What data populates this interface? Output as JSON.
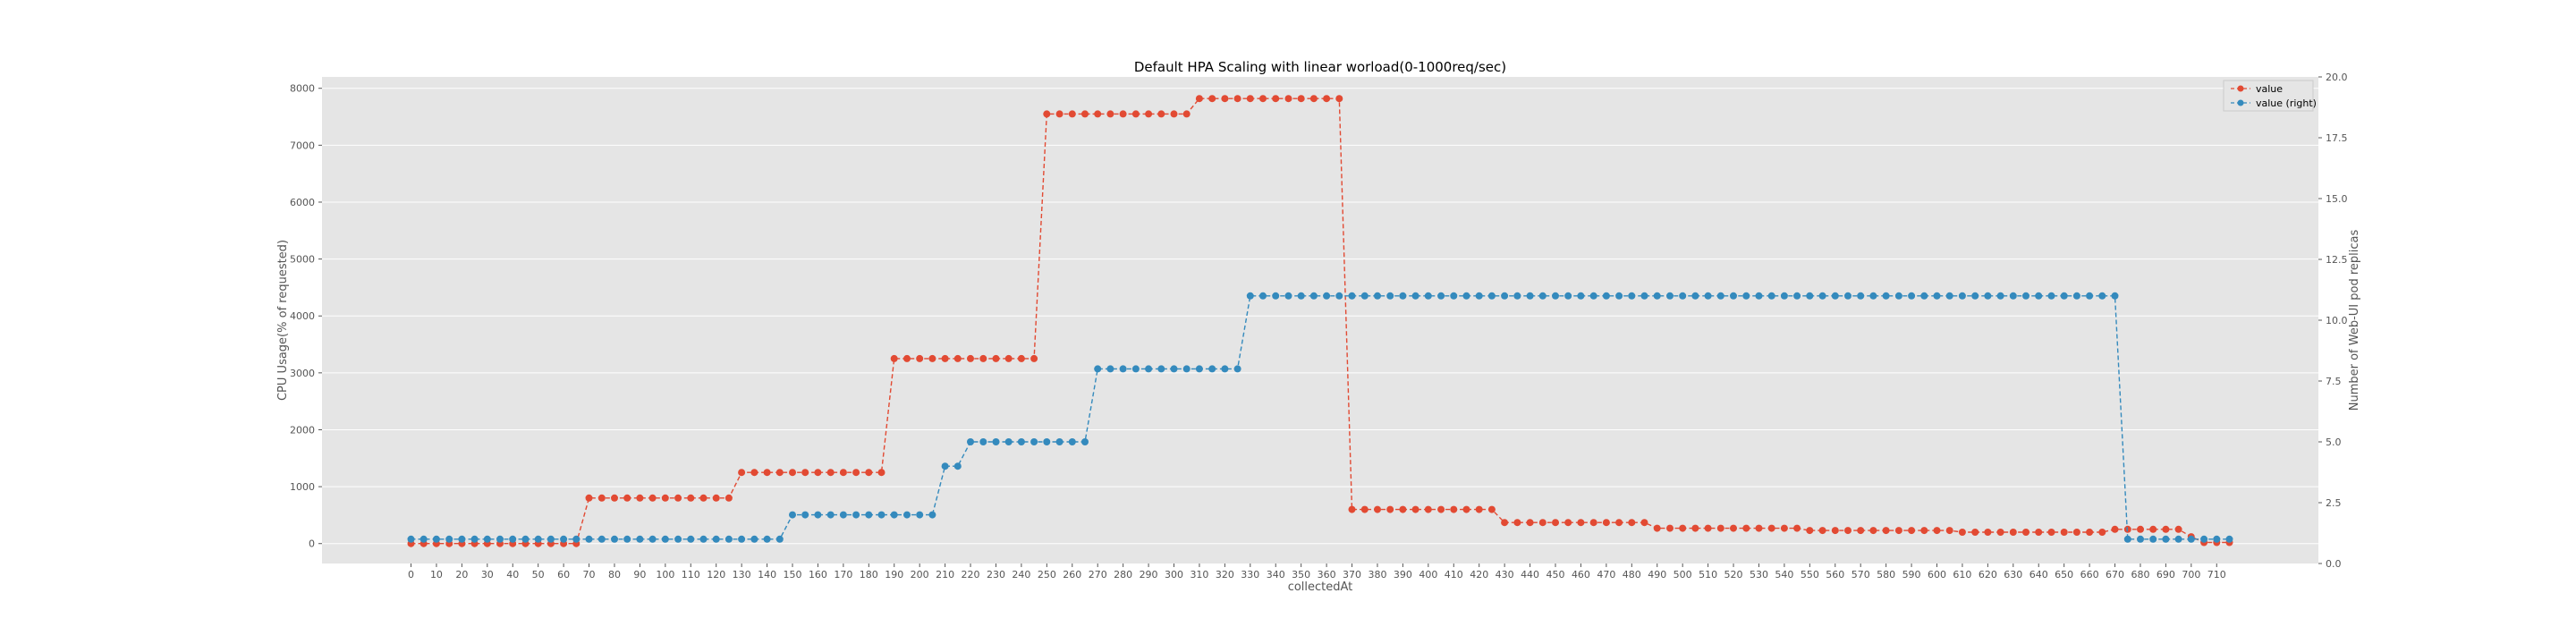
{
  "chart_data": {
    "type": "line",
    "title": "Default HPA Scaling with linear worload(0-1000req/sec)",
    "xlabel": "collectedAt",
    "ylabel_left": "CPU Usage(% of requested)",
    "ylabel_right": "Number of Web-UI pod replicas",
    "x_ticks": [
      "0",
      "10",
      "20",
      "30",
      "40",
      "50",
      "60",
      "70",
      "80",
      "90",
      "100",
      "110",
      "120",
      "130",
      "140",
      "150",
      "160",
      "170",
      "180",
      "190",
      "200",
      "210",
      "220",
      "230",
      "240",
      "250",
      "260",
      "270",
      "280",
      "290",
      "300",
      "310",
      "320",
      "330",
      "340",
      "350",
      "360",
      "370",
      "380",
      "390",
      "400",
      "410",
      "420",
      "430",
      "440",
      "450",
      "460",
      "470",
      "480",
      "490",
      "500",
      "510",
      "520",
      "530",
      "540",
      "550",
      "560",
      "570",
      "580",
      "590",
      "600",
      "610",
      "620",
      "630",
      "640",
      "650",
      "660",
      "670",
      "680",
      "690",
      "700",
      "710"
    ],
    "xlim": [
      -35,
      750
    ],
    "ylim_left": [
      -350,
      8200
    ],
    "ylim_right": [
      0,
      20
    ],
    "y_ticks_left": [
      "0",
      "1000",
      "2000",
      "3000",
      "4000",
      "5000",
      "6000",
      "7000",
      "8000"
    ],
    "y_ticks_right": [
      "0.0",
      "2.5",
      "5.0",
      "7.5",
      "10.0",
      "12.5",
      "15.0",
      "17.5",
      "20.0"
    ],
    "grid": true,
    "legend_position": "top-right",
    "series": [
      {
        "name": "value",
        "axis": "left",
        "color": "#e24a33",
        "style": "dashed",
        "marker": "circle",
        "segments": [
          {
            "from": 0,
            "to": 65,
            "value": 0
          },
          {
            "from": 70,
            "to": 125,
            "value": 800
          },
          {
            "from": 130,
            "to": 185,
            "value": 1250
          },
          {
            "from": 190,
            "to": 245,
            "value": 3250
          },
          {
            "from": 250,
            "to": 305,
            "value": 7550
          },
          {
            "from": 310,
            "to": 365,
            "value": 7820
          },
          {
            "from": 370,
            "to": 425,
            "value": 600
          },
          {
            "from": 430,
            "to": 485,
            "value": 370
          },
          {
            "from": 490,
            "to": 545,
            "value": 270
          },
          {
            "from": 550,
            "to": 605,
            "value": 230
          },
          {
            "from": 610,
            "to": 665,
            "value": 200
          },
          {
            "from": 670,
            "to": 695,
            "value": 250
          },
          {
            "from": 700,
            "to": 700,
            "value": 120
          },
          {
            "from": 705,
            "to": 715,
            "value": 20
          }
        ]
      },
      {
        "name": "value (right)",
        "axis": "right",
        "color": "#348abd",
        "style": "dashed",
        "marker": "circle",
        "segments": [
          {
            "from": 0,
            "to": 145,
            "value": 1
          },
          {
            "from": 150,
            "to": 205,
            "value": 2
          },
          {
            "from": 210,
            "to": 215,
            "value": 4
          },
          {
            "from": 220,
            "to": 265,
            "value": 5
          },
          {
            "from": 270,
            "to": 325,
            "value": 8
          },
          {
            "from": 330,
            "to": 670,
            "value": 11
          },
          {
            "from": 675,
            "to": 715,
            "value": 1
          }
        ]
      }
    ]
  }
}
